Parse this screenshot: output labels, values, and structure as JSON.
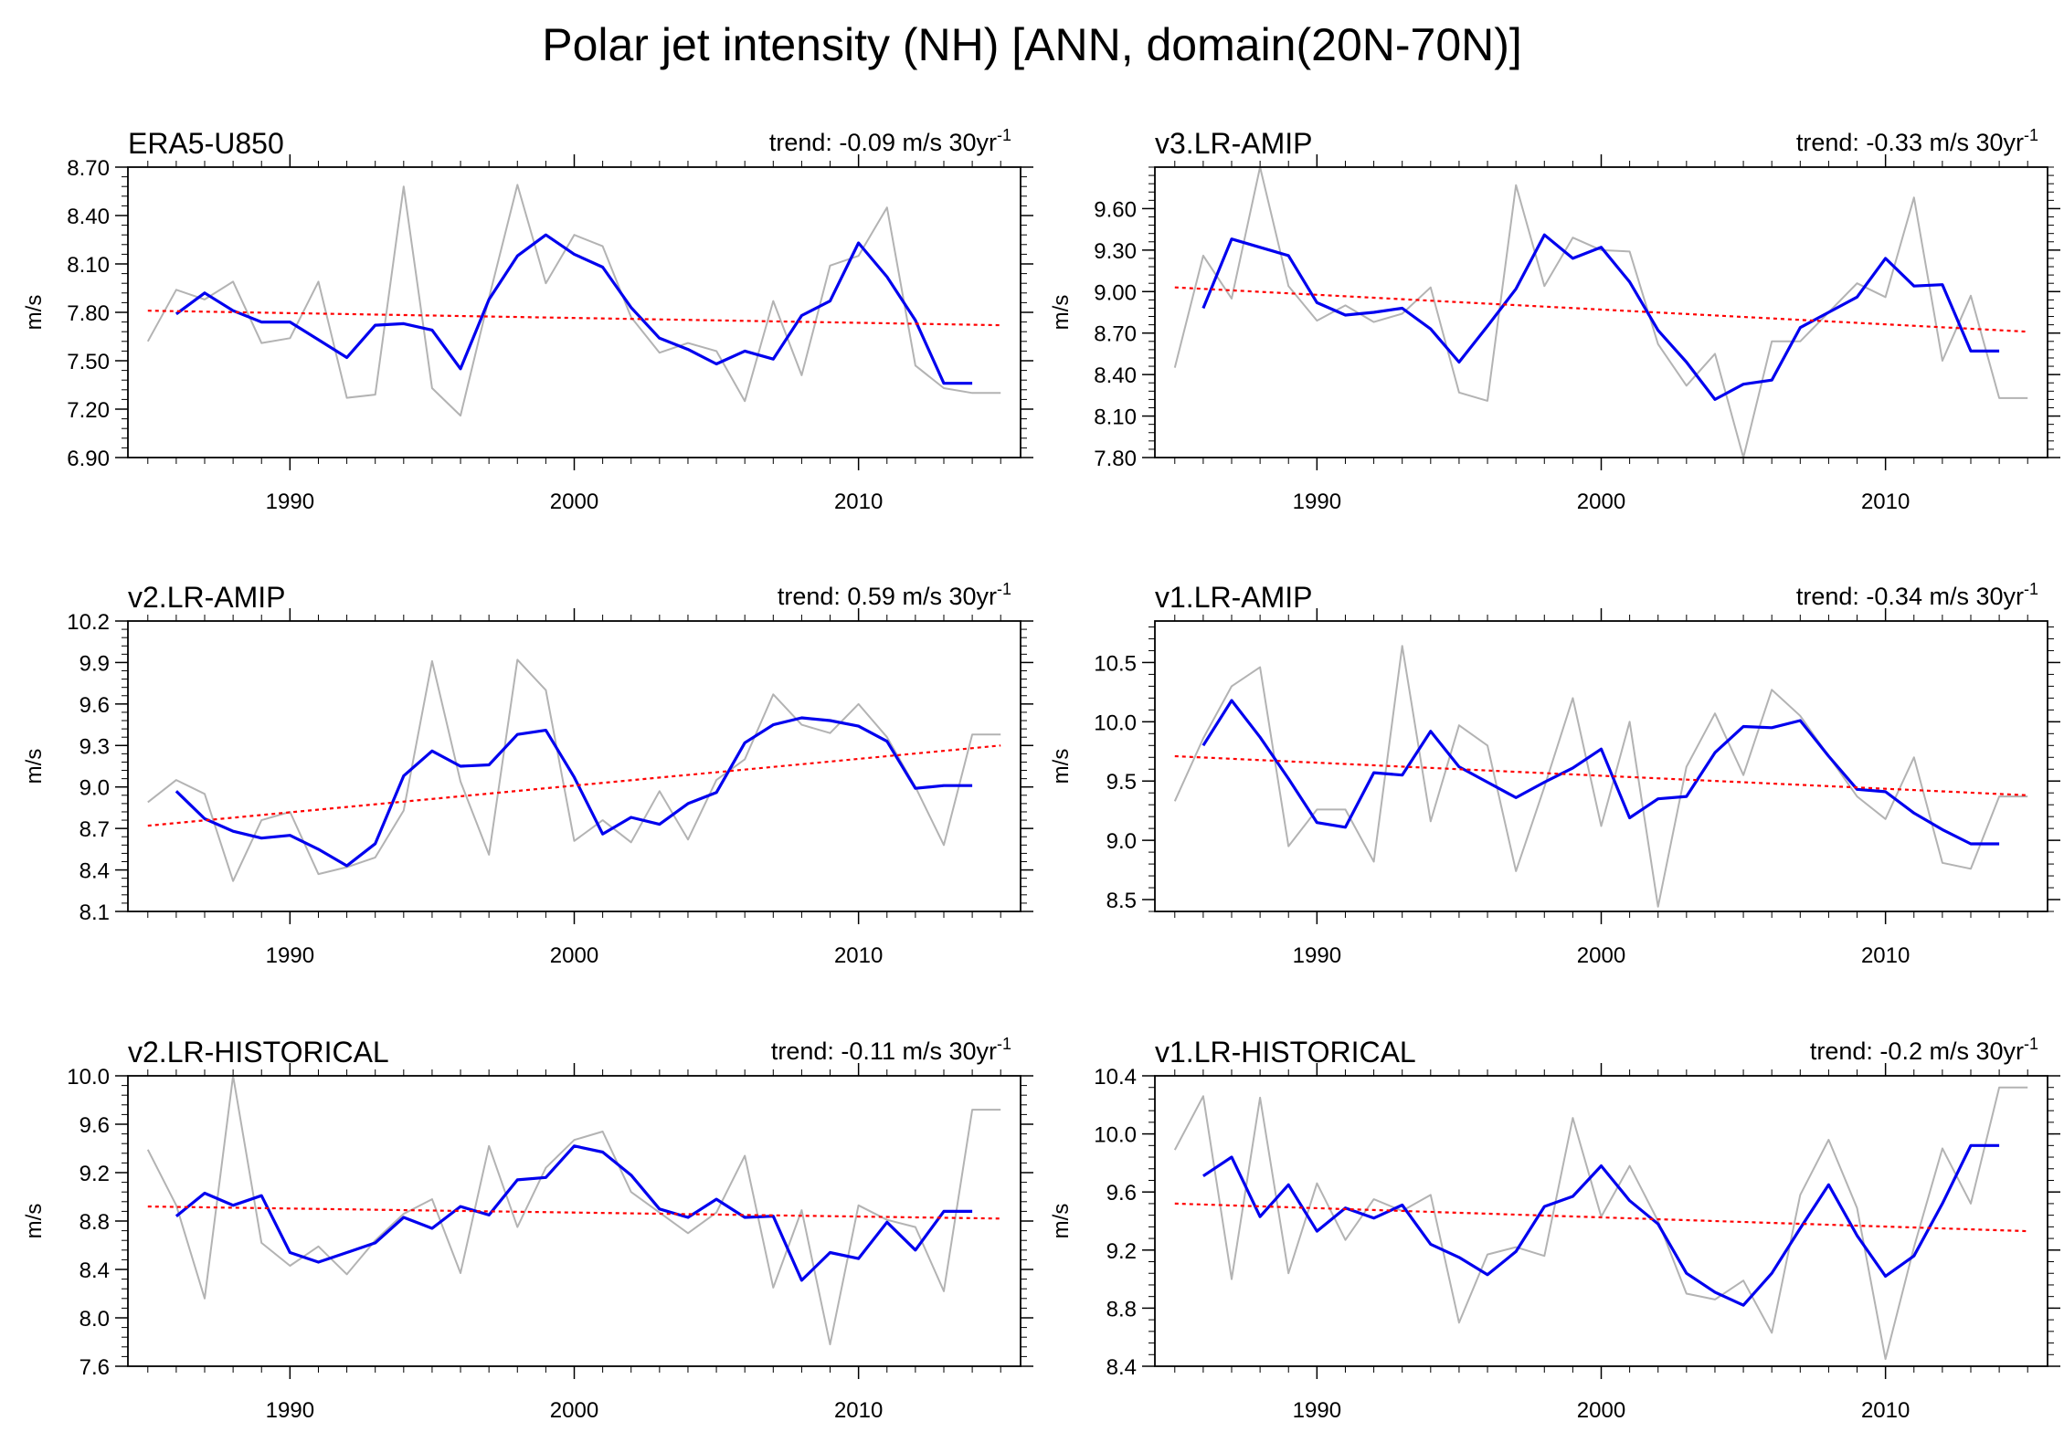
{
  "figure": {
    "title": "Polar jet intensity (NH) [ANN, domain(20N-70N)]"
  },
  "colors": {
    "raw": "#b3b3b3",
    "smoothed": "#0000ee",
    "trend": "#ff0000",
    "axis": "#000000"
  },
  "chart_data": [
    {
      "type": "line",
      "title": "ERA5-U850",
      "trend_label": "trend: -0.09 m/s 30yr",
      "trend_exp": "-1",
      "ylabel": "m/s",
      "xlim": [
        1984.3,
        2015.7
      ],
      "ylim": [
        6.9,
        8.7
      ],
      "yticks": [
        6.9,
        7.2,
        7.5,
        7.8,
        8.1,
        8.4,
        8.7
      ],
      "ytick_labels": [
        "6.90",
        "7.20",
        "7.50",
        "7.80",
        "8.10",
        "8.40",
        "8.70"
      ],
      "xticks": [
        1990,
        2000,
        2010
      ],
      "xtick_labels": [
        "1990",
        "2000",
        "2010"
      ],
      "series": [
        {
          "name": "raw",
          "x": [
            1985,
            1986,
            1987,
            1988,
            1989,
            1990,
            1991,
            1992,
            1993,
            1994,
            1995,
            1996,
            1997,
            1998,
            1999,
            2000,
            2001,
            2002,
            2003,
            2004,
            2005,
            2006,
            2007,
            2008,
            2009,
            2010,
            2011,
            2012,
            2013,
            2014,
            2015
          ],
          "values": [
            7.62,
            7.94,
            7.88,
            7.99,
            7.61,
            7.64,
            7.99,
            7.27,
            7.29,
            8.58,
            7.33,
            7.16,
            7.89,
            8.59,
            7.98,
            8.28,
            8.21,
            7.77,
            7.55,
            7.61,
            7.56,
            7.25,
            7.87,
            7.41,
            8.09,
            8.15,
            8.45,
            7.47,
            7.33,
            7.3,
            7.3
          ]
        },
        {
          "name": "smoothed",
          "x": [
            1986,
            1987,
            1988,
            1989,
            1990,
            1991,
            1992,
            1993,
            1994,
            1995,
            1996,
            1997,
            1998,
            1999,
            2000,
            2001,
            2002,
            2003,
            2004,
            2005,
            2006,
            2007,
            2008,
            2009,
            2010,
            2011,
            2012,
            2013,
            2014
          ],
          "values": [
            7.79,
            7.92,
            7.81,
            7.74,
            7.74,
            7.63,
            7.52,
            7.72,
            7.73,
            7.69,
            7.45,
            7.88,
            8.15,
            8.28,
            8.16,
            8.08,
            7.83,
            7.64,
            7.57,
            7.48,
            7.56,
            7.51,
            7.78,
            7.87,
            8.23,
            8.02,
            7.75,
            7.36,
            7.36
          ]
        },
        {
          "name": "trend",
          "x": [
            1985,
            2015
          ],
          "values": [
            7.81,
            7.72
          ]
        }
      ]
    },
    {
      "type": "line",
      "title": "v3.LR-AMIP",
      "trend_label": "trend: -0.33 m/s 30yr",
      "trend_exp": "-1",
      "ylabel": "m/s",
      "xlim": [
        1984.3,
        2015.7
      ],
      "ylim": [
        7.8,
        9.9
      ],
      "yticks": [
        7.8,
        8.1,
        8.4,
        8.7,
        9.0,
        9.3,
        9.6
      ],
      "ytick_labels": [
        "7.80",
        "8.10",
        "8.40",
        "8.70",
        "9.00",
        "9.30",
        "9.60"
      ],
      "xticks": [
        1990,
        2000,
        2010
      ],
      "xtick_labels": [
        "1990",
        "2000",
        "2010"
      ],
      "series": [
        {
          "name": "raw",
          "x": [
            1985,
            1986,
            1987,
            1988,
            1989,
            1990,
            1991,
            1992,
            1993,
            1994,
            1995,
            1996,
            1997,
            1998,
            1999,
            2000,
            2001,
            2002,
            2003,
            2004,
            2005,
            2006,
            2007,
            2008,
            2009,
            2010,
            2011,
            2012,
            2013,
            2014,
            2015
          ],
          "values": [
            8.45,
            9.26,
            8.95,
            9.9,
            9.04,
            8.79,
            8.9,
            8.78,
            8.84,
            9.03,
            8.27,
            8.21,
            9.77,
            9.04,
            9.39,
            9.3,
            9.29,
            8.62,
            8.32,
            8.55,
            7.8,
            8.64,
            8.64,
            8.85,
            9.06,
            8.96,
            9.68,
            8.5,
            8.97,
            8.23,
            8.23
          ]
        },
        {
          "name": "smoothed",
          "x": [
            1986,
            1987,
            1988,
            1989,
            1990,
            1991,
            1992,
            1993,
            1994,
            1995,
            1996,
            1997,
            1998,
            1999,
            2000,
            2001,
            2002,
            2003,
            2004,
            2005,
            2006,
            2007,
            2008,
            2009,
            2010,
            2011,
            2012,
            2013,
            2014
          ],
          "values": [
            8.88,
            9.38,
            9.32,
            9.26,
            8.92,
            8.83,
            8.85,
            8.88,
            8.73,
            8.49,
            8.75,
            9.02,
            9.41,
            9.24,
            9.32,
            9.07,
            8.72,
            8.49,
            8.22,
            8.33,
            8.36,
            8.74,
            8.85,
            8.96,
            9.24,
            9.04,
            9.05,
            8.57,
            8.57
          ]
        },
        {
          "name": "trend",
          "x": [
            1985,
            2015
          ],
          "values": [
            9.03,
            8.71
          ]
        }
      ]
    },
    {
      "type": "line",
      "title": "v2.LR-AMIP",
      "trend_label": "trend: 0.59 m/s 30yr",
      "trend_exp": "-1",
      "ylabel": "m/s",
      "xlim": [
        1984.3,
        2015.7
      ],
      "ylim": [
        8.1,
        10.2
      ],
      "yticks": [
        8.1,
        8.4,
        8.7,
        9.0,
        9.3,
        9.6,
        9.9,
        10.2
      ],
      "ytick_labels": [
        "8.1",
        "8.4",
        "8.7",
        "9.0",
        "9.3",
        "9.6",
        "9.9",
        "10.2"
      ],
      "xticks": [
        1990,
        2000,
        2010
      ],
      "xtick_labels": [
        "1990",
        "2000",
        "2010"
      ],
      "series": [
        {
          "name": "raw",
          "x": [
            1985,
            1986,
            1987,
            1988,
            1989,
            1990,
            1991,
            1992,
            1993,
            1994,
            1995,
            1996,
            1997,
            1998,
            1999,
            2000,
            2001,
            2002,
            2003,
            2004,
            2005,
            2006,
            2007,
            2008,
            2009,
            2010,
            2011,
            2012,
            2013,
            2014,
            2015
          ],
          "values": [
            8.89,
            9.05,
            8.95,
            8.32,
            8.76,
            8.82,
            8.37,
            8.42,
            8.49,
            8.83,
            9.91,
            9.04,
            8.51,
            9.92,
            9.7,
            8.61,
            8.76,
            8.6,
            8.97,
            8.62,
            9.05,
            9.2,
            9.67,
            9.45,
            9.39,
            9.6,
            9.36,
            9.0,
            8.58,
            9.38,
            9.38
          ]
        },
        {
          "name": "smoothed",
          "x": [
            1986,
            1987,
            1988,
            1989,
            1990,
            1991,
            1992,
            1993,
            1994,
            1995,
            1996,
            1997,
            1998,
            1999,
            2000,
            2001,
            2002,
            2003,
            2004,
            2005,
            2006,
            2007,
            2008,
            2009,
            2010,
            2011,
            2012,
            2013,
            2014
          ],
          "values": [
            8.97,
            8.77,
            8.68,
            8.63,
            8.65,
            8.55,
            8.43,
            8.59,
            9.08,
            9.26,
            9.15,
            9.16,
            9.38,
            9.41,
            9.07,
            8.66,
            8.78,
            8.73,
            8.88,
            8.96,
            9.32,
            9.45,
            9.5,
            9.48,
            9.44,
            9.33,
            8.99,
            9.01,
            9.01
          ]
        },
        {
          "name": "trend",
          "x": [
            1985,
            2015
          ],
          "values": [
            8.72,
            9.3
          ]
        }
      ]
    },
    {
      "type": "line",
      "title": "v1.LR-AMIP",
      "trend_label": "trend: -0.34 m/s 30yr",
      "trend_exp": "-1",
      "ylabel": "m/s",
      "xlim": [
        1984.3,
        2015.7
      ],
      "ylim": [
        8.4,
        10.85
      ],
      "yticks": [
        8.5,
        9.0,
        9.5,
        10.0,
        10.5
      ],
      "ytick_labels": [
        "8.5",
        "9.0",
        "9.5",
        "10.0",
        "10.5"
      ],
      "xticks": [
        1990,
        2000,
        2010
      ],
      "xtick_labels": [
        "1990",
        "2000",
        "2010"
      ],
      "series": [
        {
          "name": "raw",
          "x": [
            1985,
            1986,
            1987,
            1988,
            1989,
            1990,
            1991,
            1992,
            1993,
            1994,
            1995,
            1996,
            1997,
            1998,
            1999,
            2000,
            2001,
            2002,
            2003,
            2004,
            2005,
            2006,
            2007,
            2008,
            2009,
            2010,
            2011,
            2012,
            2013,
            2014,
            2015
          ],
          "values": [
            9.33,
            9.86,
            10.3,
            10.46,
            8.95,
            9.26,
            9.26,
            8.82,
            10.64,
            9.16,
            9.97,
            9.8,
            8.74,
            9.45,
            10.2,
            9.12,
            10.0,
            8.44,
            9.62,
            10.07,
            9.55,
            10.27,
            10.05,
            9.71,
            9.37,
            9.18,
            9.7,
            8.81,
            8.76,
            9.37,
            9.37
          ]
        },
        {
          "name": "smoothed",
          "x": [
            1986,
            1987,
            1988,
            1989,
            1990,
            1991,
            1992,
            1993,
            1994,
            1995,
            1996,
            1997,
            1998,
            1999,
            2000,
            2001,
            2002,
            2003,
            2004,
            2005,
            2006,
            2007,
            2008,
            2009,
            2010,
            2011,
            2012,
            2013,
            2014
          ],
          "values": [
            9.8,
            10.18,
            9.87,
            9.52,
            9.15,
            9.11,
            9.57,
            9.55,
            9.92,
            9.62,
            9.49,
            9.36,
            9.49,
            9.61,
            9.77,
            9.19,
            9.35,
            9.37,
            9.74,
            9.96,
            9.95,
            10.01,
            9.71,
            9.43,
            9.41,
            9.23,
            9.09,
            8.97,
            8.97
          ]
        },
        {
          "name": "trend",
          "x": [
            1985,
            2015
          ],
          "values": [
            9.71,
            9.38
          ]
        }
      ]
    },
    {
      "type": "line",
      "title": "v2.LR-HISTORICAL",
      "trend_label": "trend: -0.11 m/s 30yr",
      "trend_exp": "-1",
      "ylabel": "m/s",
      "xlim": [
        1984.3,
        2015.7
      ],
      "ylim": [
        7.6,
        10.0
      ],
      "yticks": [
        7.6,
        8.0,
        8.4,
        8.8,
        9.2,
        9.6,
        10.0
      ],
      "ytick_labels": [
        "7.6",
        "8.0",
        "8.4",
        "8.8",
        "9.2",
        "9.6",
        "10.0"
      ],
      "xticks": [
        1990,
        2000,
        2010
      ],
      "xtick_labels": [
        "1990",
        "2000",
        "2010"
      ],
      "series": [
        {
          "name": "raw",
          "x": [
            1985,
            1986,
            1987,
            1988,
            1989,
            1990,
            1991,
            1992,
            1993,
            1994,
            1995,
            1996,
            1997,
            1998,
            1999,
            2000,
            2001,
            2002,
            2003,
            2004,
            2005,
            2006,
            2007,
            2008,
            2009,
            2010,
            2011,
            2012,
            2013,
            2014,
            2015
          ],
          "values": [
            9.39,
            8.93,
            8.16,
            10.0,
            8.62,
            8.43,
            8.59,
            8.36,
            8.64,
            8.86,
            8.98,
            8.37,
            9.42,
            8.75,
            9.24,
            9.47,
            9.54,
            9.04,
            8.87,
            8.7,
            8.87,
            9.34,
            8.25,
            8.89,
            7.78,
            8.93,
            8.81,
            8.75,
            8.22,
            9.72,
            9.72
          ]
        },
        {
          "name": "smoothed",
          "x": [
            1986,
            1987,
            1988,
            1989,
            1990,
            1991,
            1992,
            1993,
            1994,
            1995,
            1996,
            1997,
            1998,
            1999,
            2000,
            2001,
            2002,
            2003,
            2004,
            2005,
            2006,
            2007,
            2008,
            2009,
            2010,
            2011,
            2012,
            2013,
            2014
          ],
          "values": [
            8.84,
            9.03,
            8.93,
            9.01,
            8.54,
            8.46,
            8.54,
            8.62,
            8.83,
            8.74,
            8.92,
            8.85,
            9.14,
            9.16,
            9.42,
            9.37,
            9.18,
            8.9,
            8.83,
            8.98,
            8.83,
            8.84,
            8.31,
            8.54,
            8.49,
            8.79,
            8.56,
            8.88,
            8.88
          ]
        },
        {
          "name": "trend",
          "x": [
            1985,
            2015
          ],
          "values": [
            8.92,
            8.82
          ]
        }
      ]
    },
    {
      "type": "line",
      "title": "v1.LR-HISTORICAL",
      "trend_label": "trend: -0.2 m/s 30yr",
      "trend_exp": "-1",
      "ylabel": "m/s",
      "xlim": [
        1984.3,
        2015.7
      ],
      "ylim": [
        8.4,
        10.4
      ],
      "yticks": [
        8.4,
        8.8,
        9.2,
        9.6,
        10.0,
        10.4
      ],
      "ytick_labels": [
        "8.4",
        "8.8",
        "9.2",
        "9.6",
        "10.0",
        "10.4"
      ],
      "xticks": [
        1990,
        2000,
        2010
      ],
      "xtick_labels": [
        "1990",
        "2000",
        "2010"
      ],
      "series": [
        {
          "name": "raw",
          "x": [
            1985,
            1986,
            1987,
            1988,
            1989,
            1990,
            1991,
            1992,
            1993,
            1994,
            1995,
            1996,
            1997,
            1998,
            1999,
            2000,
            2001,
            2002,
            2003,
            2004,
            2005,
            2006,
            2007,
            2008,
            2009,
            2010,
            2011,
            2012,
            2013,
            2014,
            2015
          ],
          "values": [
            9.89,
            10.26,
            9.0,
            10.25,
            9.04,
            9.66,
            9.27,
            9.55,
            9.47,
            9.58,
            8.7,
            9.17,
            9.22,
            9.16,
            10.11,
            9.43,
            9.78,
            9.4,
            8.9,
            8.86,
            8.99,
            8.63,
            9.58,
            9.96,
            9.49,
            8.45,
            9.22,
            9.9,
            9.52,
            10.32,
            10.32
          ]
        },
        {
          "name": "smoothed",
          "x": [
            1986,
            1987,
            1988,
            1989,
            1990,
            1991,
            1992,
            1993,
            1994,
            1995,
            1996,
            1997,
            1998,
            1999,
            2000,
            2001,
            2002,
            2003,
            2004,
            2005,
            2006,
            2007,
            2008,
            2009,
            2010,
            2011,
            2012,
            2013,
            2014
          ],
          "values": [
            9.71,
            9.84,
            9.43,
            9.65,
            9.33,
            9.49,
            9.42,
            9.51,
            9.24,
            9.15,
            9.03,
            9.19,
            9.5,
            9.57,
            9.78,
            9.54,
            9.38,
            9.04,
            8.91,
            8.82,
            9.04,
            9.35,
            9.65,
            9.3,
            9.02,
            9.16,
            9.52,
            9.92,
            9.92
          ]
        },
        {
          "name": "trend",
          "x": [
            1985,
            2015
          ],
          "values": [
            9.52,
            9.33
          ]
        }
      ]
    }
  ]
}
